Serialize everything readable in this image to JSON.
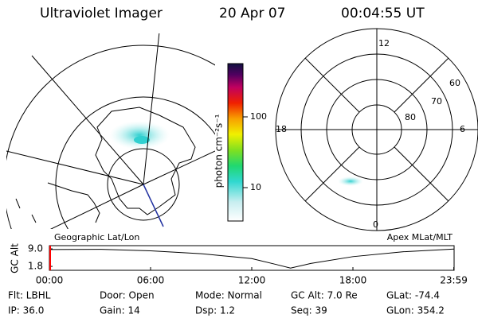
{
  "header": {
    "title": "Ultraviolet Imager",
    "date": "20 Apr 07",
    "time": "00:04:55 UT"
  },
  "colorbar": {
    "label": "photon cm⁻²s⁻¹",
    "ticks": [
      {
        "value": 100,
        "label": "100"
      },
      {
        "value": 10,
        "label": "10"
      }
    ]
  },
  "polar": {
    "mlt_labels": [
      "12",
      "18",
      "6",
      "0"
    ],
    "mlat_labels": [
      "60",
      "70",
      "80"
    ]
  },
  "panels": {
    "left": "Geographic Lat/Lon",
    "right": "Apex MLat/MLT"
  },
  "timeline": {
    "ylabel": "GC Alt",
    "yticks": [
      {
        "value": 9.0,
        "label": "9.0"
      },
      {
        "value": 1.8,
        "label": "1.8"
      }
    ],
    "ylim": [
      0.2,
      10.3
    ],
    "xlim": [
      0,
      24
    ],
    "xticks": [
      {
        "value": 0,
        "label": "00:00"
      },
      {
        "value": 6,
        "label": "06:00"
      },
      {
        "value": 12,
        "label": "12:00"
      },
      {
        "value": 18,
        "label": "18:00"
      },
      {
        "value": 23.98,
        "label": "23:59"
      }
    ],
    "x": [
      0,
      3,
      6,
      9,
      12,
      13.5,
      14.3,
      15.5,
      18,
      21,
      24
    ],
    "values": [
      8.7,
      8.8,
      8.2,
      7.0,
      5.0,
      2.5,
      1.1,
      3.0,
      5.8,
      7.8,
      8.9
    ],
    "color": "#000000",
    "marker_color": "#ff0000"
  },
  "footer": {
    "rows": [
      [
        "Flt: LBHL",
        "Door: Open",
        "Mode: Normal",
        "GC Alt: 7.0 Re",
        "GLat: -74.4"
      ],
      [
        "IP: 36.0",
        "Gain: 14",
        "Dsp:    1.2",
        "Seq: 39",
        "GLon: 354.2"
      ]
    ]
  }
}
